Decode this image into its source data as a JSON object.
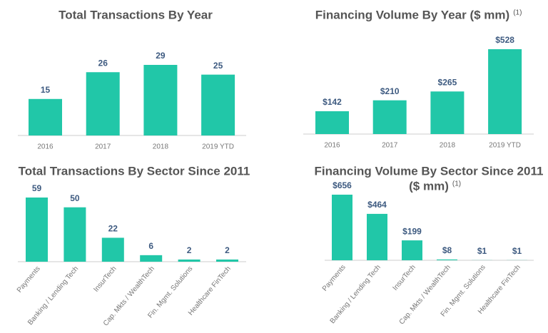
{
  "chart_data": [
    {
      "type": "bar",
      "title": "Total Transactions By Year",
      "categories": [
        "2016",
        "2017",
        "2018",
        "2019 YTD"
      ],
      "values": [
        15,
        26,
        29,
        25
      ],
      "color": "#21c7a8"
    },
    {
      "type": "bar",
      "title": "Financing Volume By Year ($ mm)",
      "title_note": "(1)",
      "categories": [
        "2016",
        "2017",
        "2018",
        "2019 YTD"
      ],
      "values": [
        142,
        210,
        265,
        528
      ],
      "value_labels": [
        "$142",
        "$210",
        "$265",
        "$528"
      ],
      "color": "#21c7a8"
    },
    {
      "type": "bar",
      "title": "Total Transactions By Sector Since 2011",
      "categories": [
        "Payments",
        "Banking / Lending Tech",
        "InsurTech",
        "Cap. Mkts / WealthTech",
        "Fin. Mgmt. Solutions",
        "Healthcare FinTech"
      ],
      "values": [
        59,
        50,
        22,
        6,
        2,
        2
      ],
      "color": "#21c7a8"
    },
    {
      "type": "bar",
      "title": "Financing Volume By Sector Since 2011",
      "subtitle": "($ mm)",
      "title_note": "(1)",
      "categories": [
        "Payments",
        "Banking / Lending Tech",
        "InsurTech",
        "Cap. Mkts / WealthTech",
        "Fin. Mgmt. Solutions",
        "Healthcare FinTech"
      ],
      "values": [
        656,
        464,
        199,
        8,
        1,
        1
      ],
      "value_labels": [
        "$656",
        "$464",
        "$199",
        "$8",
        "$1",
        "$1"
      ],
      "color": "#21c7a8"
    }
  ]
}
